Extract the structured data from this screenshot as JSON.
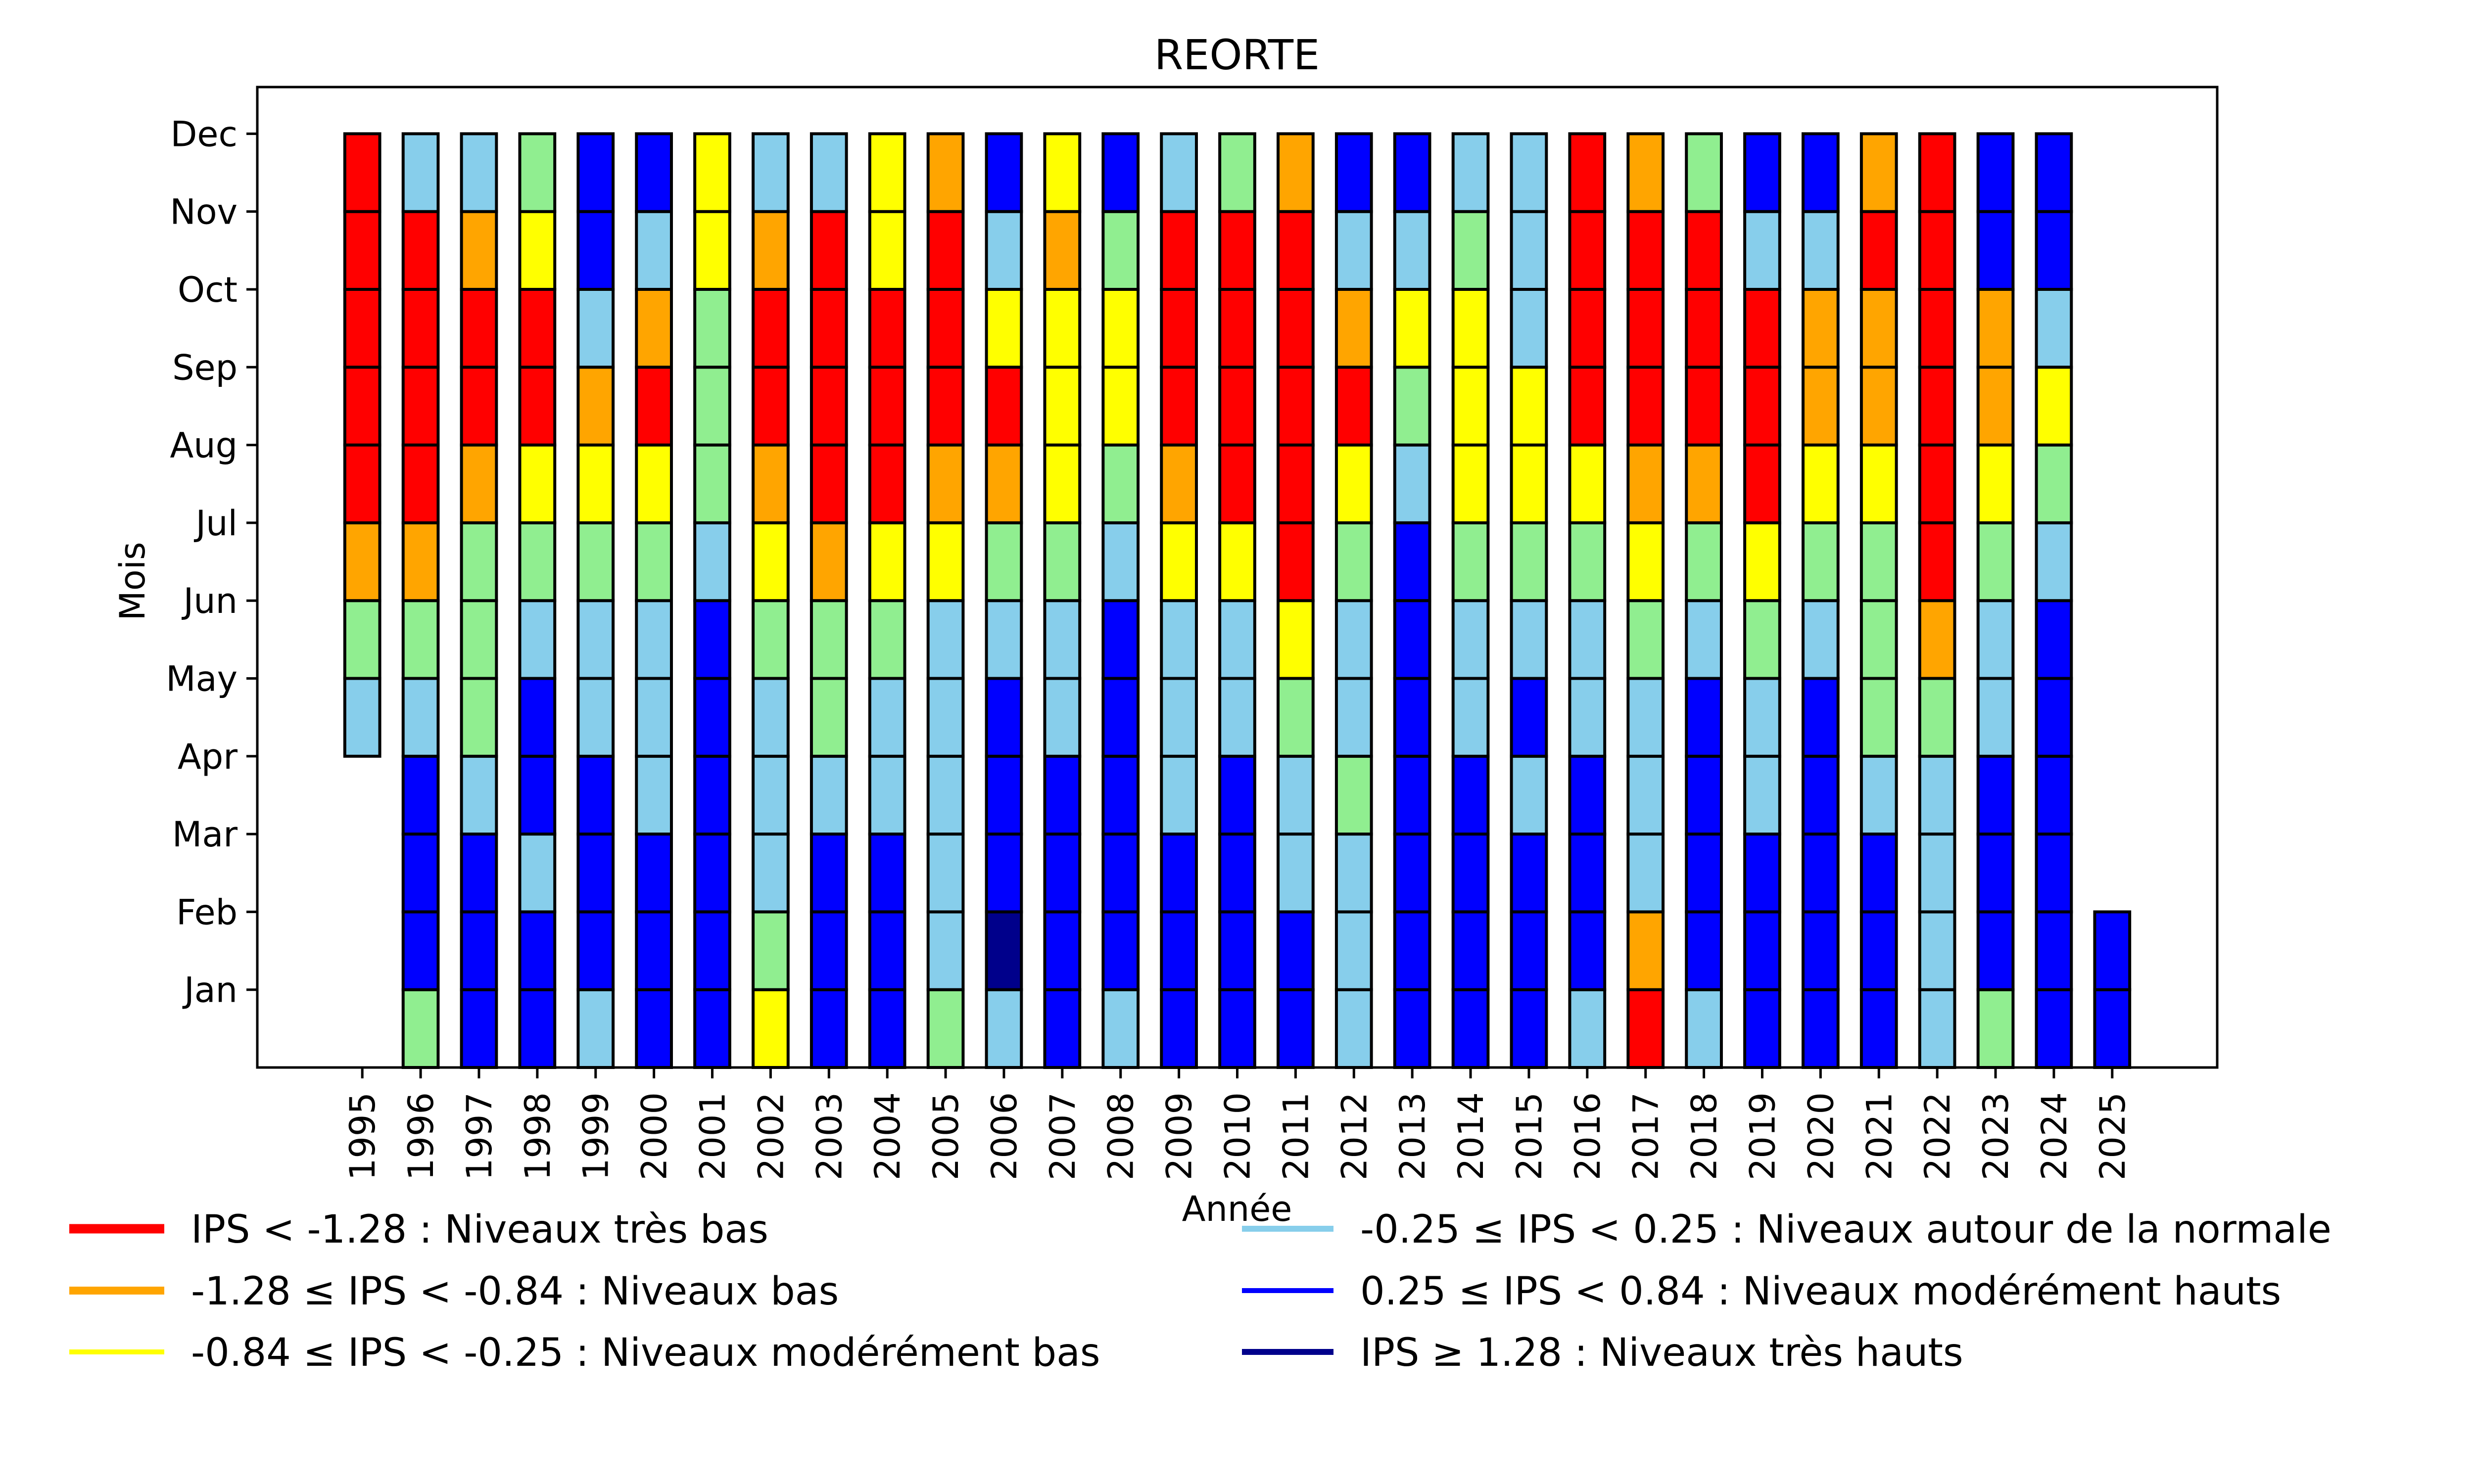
{
  "chart_data": {
    "type": "heatmap",
    "subtype": "stacked-monthly-category-bars",
    "title": "REORTE",
    "xlabel": "Année",
    "ylabel": "Mois",
    "x": [
      1995,
      1996,
      1997,
      1998,
      1999,
      2000,
      2001,
      2002,
      2003,
      2004,
      2005,
      2006,
      2007,
      2008,
      2009,
      2010,
      2011,
      2012,
      2013,
      2014,
      2015,
      2016,
      2017,
      2018,
      2019,
      2020,
      2021,
      2022,
      2023,
      2024,
      2025
    ],
    "x_tick_labels": [
      "1995",
      "1996",
      "1997",
      "1998",
      "1999",
      "2000",
      "2001",
      "2002",
      "2003",
      "2004",
      "2005",
      "2006",
      "2007",
      "2008",
      "2009",
      "2010",
      "2011",
      "2012",
      "2013",
      "2014",
      "2015",
      "2016",
      "2017",
      "2018",
      "2019",
      "2020",
      "2021",
      "2022",
      "2023",
      "2024",
      "2025"
    ],
    "y_tick_labels": [
      "Jan",
      "Feb",
      "Mar",
      "Apr",
      "May",
      "Jun",
      "Jul",
      "Aug",
      "Sep",
      "Oct",
      "Nov",
      "Dec"
    ],
    "xlim": [
      1993.2,
      2026.8
    ],
    "ylim": [
      0,
      12.6
    ],
    "bar_width": 0.6,
    "grid": false,
    "legend_placement": "below-plot, two columns",
    "category_colors": {
      "R": "#FF0000",
      "O": "#FFA500",
      "Y": "#FFFF00",
      "G": "#90EE90",
      "S": "#87CEEB",
      "B": "#0000FF",
      "D": "#00008B"
    },
    "values_note": "per year, month categories Jan→Dec; null = no data",
    "values": {
      "1995": [
        null,
        null,
        null,
        null,
        "S",
        "G",
        "O",
        "R",
        "R",
        "R",
        "R",
        "R"
      ],
      "1996": [
        "G",
        "B",
        "B",
        "B",
        "S",
        "G",
        "O",
        "R",
        "R",
        "R",
        "R",
        "S"
      ],
      "1997": [
        "B",
        "B",
        "B",
        "S",
        "G",
        "G",
        "G",
        "O",
        "R",
        "R",
        "O",
        "S"
      ],
      "1998": [
        "B",
        "B",
        "S",
        "B",
        "B",
        "S",
        "G",
        "Y",
        "R",
        "R",
        "Y",
        "G"
      ],
      "1999": [
        "S",
        "B",
        "B",
        "B",
        "S",
        "S",
        "G",
        "Y",
        "O",
        "S",
        "B",
        "B"
      ],
      "2000": [
        "B",
        "B",
        "B",
        "S",
        "S",
        "S",
        "G",
        "Y",
        "R",
        "O",
        "S",
        "B"
      ],
      "2001": [
        "B",
        "B",
        "B",
        "B",
        "B",
        "B",
        "S",
        "G",
        "G",
        "G",
        "Y",
        "Y"
      ],
      "2002": [
        "Y",
        "G",
        "S",
        "S",
        "S",
        "G",
        "Y",
        "O",
        "R",
        "R",
        "O",
        "S"
      ],
      "2003": [
        "B",
        "B",
        "B",
        "S",
        "G",
        "G",
        "O",
        "R",
        "R",
        "R",
        "R",
        "S"
      ],
      "2004": [
        "B",
        "B",
        "B",
        "S",
        "S",
        "G",
        "Y",
        "R",
        "R",
        "R",
        "Y",
        "Y"
      ],
      "2005": [
        "G",
        "S",
        "S",
        "S",
        "S",
        "S",
        "Y",
        "O",
        "R",
        "R",
        "R",
        "O"
      ],
      "2006": [
        "S",
        "D",
        "B",
        "B",
        "B",
        "S",
        "G",
        "O",
        "R",
        "Y",
        "S",
        "B"
      ],
      "2007": [
        "B",
        "B",
        "B",
        "B",
        "S",
        "S",
        "G",
        "Y",
        "Y",
        "Y",
        "O",
        "Y"
      ],
      "2008": [
        "S",
        "B",
        "B",
        "B",
        "B",
        "B",
        "S",
        "G",
        "Y",
        "Y",
        "G",
        "B"
      ],
      "2009": [
        "B",
        "B",
        "B",
        "S",
        "S",
        "S",
        "Y",
        "O",
        "R",
        "R",
        "R",
        "S"
      ],
      "2010": [
        "B",
        "B",
        "B",
        "B",
        "S",
        "S",
        "Y",
        "R",
        "R",
        "R",
        "R",
        "G"
      ],
      "2011": [
        "B",
        "B",
        "S",
        "S",
        "G",
        "Y",
        "R",
        "R",
        "R",
        "R",
        "R",
        "O"
      ],
      "2012": [
        "S",
        "S",
        "S",
        "G",
        "S",
        "S",
        "G",
        "Y",
        "R",
        "O",
        "S",
        "B"
      ],
      "2013": [
        "B",
        "B",
        "B",
        "B",
        "B",
        "B",
        "B",
        "S",
        "G",
        "Y",
        "S",
        "B"
      ],
      "2014": [
        "B",
        "B",
        "B",
        "B",
        "S",
        "S",
        "G",
        "Y",
        "Y",
        "Y",
        "G",
        "S"
      ],
      "2015": [
        "B",
        "B",
        "B",
        "S",
        "B",
        "S",
        "G",
        "Y",
        "Y",
        "S",
        "S",
        "S"
      ],
      "2016": [
        "S",
        "B",
        "B",
        "B",
        "S",
        "S",
        "G",
        "Y",
        "R",
        "R",
        "R",
        "R"
      ],
      "2017": [
        "R",
        "O",
        "S",
        "S",
        "S",
        "G",
        "Y",
        "O",
        "R",
        "R",
        "R",
        "O"
      ],
      "2018": [
        "S",
        "B",
        "B",
        "B",
        "B",
        "S",
        "G",
        "O",
        "R",
        "R",
        "R",
        "G"
      ],
      "2019": [
        "B",
        "B",
        "B",
        "S",
        "S",
        "G",
        "Y",
        "R",
        "R",
        "R",
        "S",
        "B"
      ],
      "2020": [
        "B",
        "B",
        "B",
        "B",
        "B",
        "S",
        "G",
        "Y",
        "O",
        "O",
        "S",
        "B"
      ],
      "2021": [
        "B",
        "B",
        "B",
        "S",
        "G",
        "G",
        "G",
        "Y",
        "O",
        "O",
        "R",
        "O"
      ],
      "2022": [
        "S",
        "S",
        "S",
        "S",
        "G",
        "O",
        "R",
        "R",
        "R",
        "R",
        "R",
        "R"
      ],
      "2023": [
        "G",
        "B",
        "B",
        "B",
        "S",
        "S",
        "G",
        "Y",
        "O",
        "O",
        "B",
        "B"
      ],
      "2024": [
        "B",
        "B",
        "B",
        "B",
        "B",
        "B",
        "S",
        "G",
        "Y",
        "S",
        "B",
        "B"
      ],
      "2025": [
        "B",
        "B",
        null,
        null,
        null,
        null,
        null,
        null,
        null,
        null,
        null,
        null
      ]
    },
    "legend": [
      {
        "label": "IPS < -1.28 : Niveaux très bas",
        "color": "#FF0000",
        "category": "R"
      },
      {
        "label": "-1.28 ≤ IPS < -0.84 : Niveaux bas",
        "color": "#FFA500",
        "category": "O"
      },
      {
        "label": "-0.84 ≤ IPS < -0.25 : Niveaux modérément bas",
        "color": "#FFFF00",
        "category": "Y"
      },
      {
        "label": "-0.25 ≤ IPS < 0.25 : Niveaux autour de la normale",
        "color": "#87CEEB",
        "category": "S"
      },
      {
        "label": "0.25 ≤ IPS < 0.84 : Niveaux modérément hauts",
        "color": "#0000FF",
        "category": "B"
      },
      {
        "label": "IPS ≥ 1.28 : Niveaux très hauts",
        "color": "#00008B",
        "category": "D"
      }
    ]
  }
}
